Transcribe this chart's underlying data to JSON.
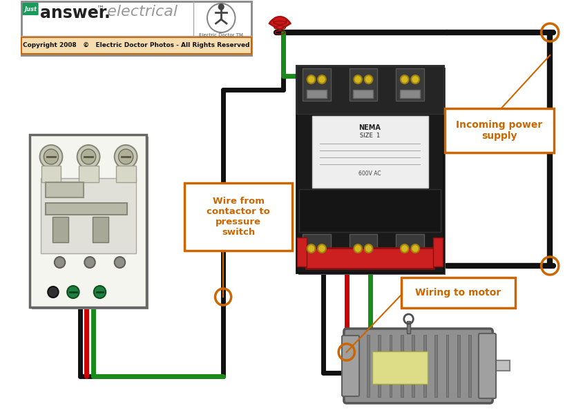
{
  "bg_color": "#ffffff",
  "header_bg": "#ffffff",
  "header_border": "#cc7700",
  "copyright_bg": "#cc7700",
  "copyright_text": "Copyright 2008   ©   Electric Doctor Photos - All Rights Reserved",
  "wire_black": "#111111",
  "wire_red": "#cc0000",
  "wire_green": "#1a8a1a",
  "wire_lw": 5,
  "annotation_color": "#cc6600",
  "label_incoming": "Incoming power\nsupply",
  "label_wire": "Wire from\ncontactor to\npressure\nswitch",
  "label_motor": "Wiring to motor",
  "fig_width": 8.31,
  "fig_height": 6.04
}
